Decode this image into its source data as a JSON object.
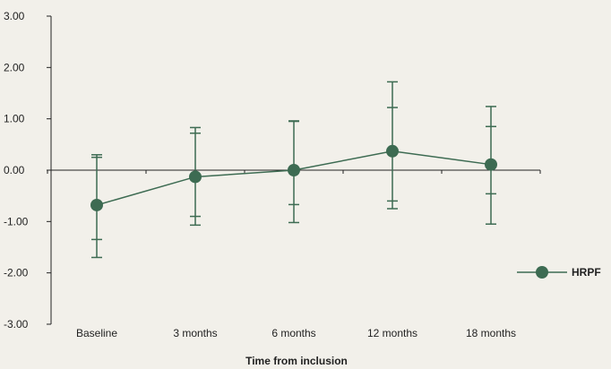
{
  "chart_data": {
    "type": "line",
    "title": "",
    "xlabel": "Time from inclusion",
    "ylabel": "",
    "categories": [
      "Baseline",
      "3 months",
      "6 months",
      "12 months",
      "18 months"
    ],
    "ylim": [
      -3,
      3
    ],
    "y_ticks": [
      3,
      2,
      1,
      0,
      -1,
      -2,
      -3
    ],
    "y_tick_labels": [
      "3.00",
      "2.00",
      "1.00",
      "0.00",
      "-1.00",
      "-2.00",
      "-3.00"
    ],
    "legend_position": "right",
    "color": "#3d6b52",
    "series": [
      {
        "name": "HRPF",
        "values": [
          -0.68,
          -0.13,
          0.0,
          0.37,
          0.11
        ],
        "error_inner": [
          [
            -1.35,
            0.25
          ],
          [
            -0.9,
            0.72
          ],
          [
            -0.67,
            0.95
          ],
          [
            -0.6,
            1.22
          ],
          [
            -0.46,
            0.85
          ]
        ],
        "error_outer": [
          [
            -1.7,
            0.3
          ],
          [
            -1.07,
            0.83
          ],
          [
            -1.02,
            0.96
          ],
          [
            -0.75,
            1.72
          ],
          [
            -1.05,
            1.24
          ]
        ]
      }
    ]
  }
}
